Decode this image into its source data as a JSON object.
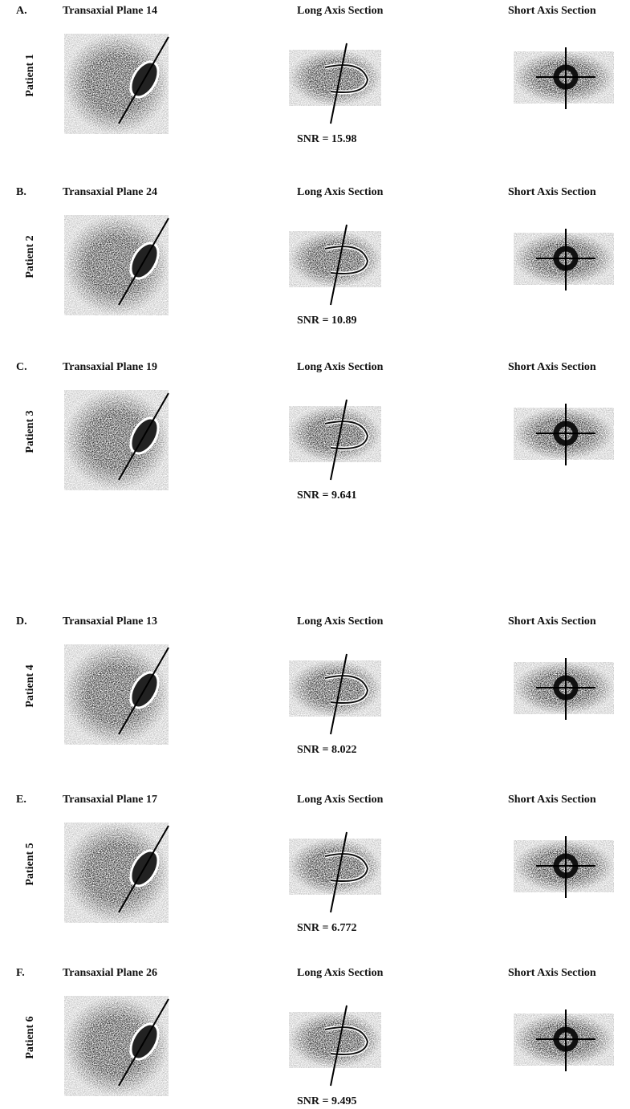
{
  "panels": [
    {
      "letter": "A.",
      "transaxial": "Transaxial Plane 14",
      "long_axis": "Long Axis Section",
      "short_axis": "Short Axis Section",
      "patient": "Patient 1",
      "snr": "SNR = 15.98"
    },
    {
      "letter": "B.",
      "transaxial": "Transaxial Plane 24",
      "long_axis": "Long Axis Section",
      "short_axis": "Short Axis Section",
      "patient": "Patient 2",
      "snr": "SNR = 10.89"
    },
    {
      "letter": "C.",
      "transaxial": "Transaxial Plane 19",
      "long_axis": "Long Axis Section",
      "short_axis": "Short Axis Section",
      "patient": "Patient 3",
      "snr": "SNR = 9.641"
    },
    {
      "letter": "D.",
      "transaxial": "Transaxial Plane 13",
      "long_axis": "Long Axis Section",
      "short_axis": "Short Axis Section",
      "patient": "Patient 4",
      "snr": "SNR = 8.022"
    },
    {
      "letter": "E.",
      "transaxial": "Transaxial Plane 17",
      "long_axis": "Long Axis Section",
      "short_axis": "Short Axis Section",
      "patient": "Patient 5",
      "snr": "SNR = 6.772"
    },
    {
      "letter": "F.",
      "transaxial": "Transaxial Plane 26",
      "long_axis": "Long Axis Section",
      "short_axis": "Short Axis Section",
      "patient": "Patient 6",
      "snr": "SNR = 9.495"
    }
  ]
}
